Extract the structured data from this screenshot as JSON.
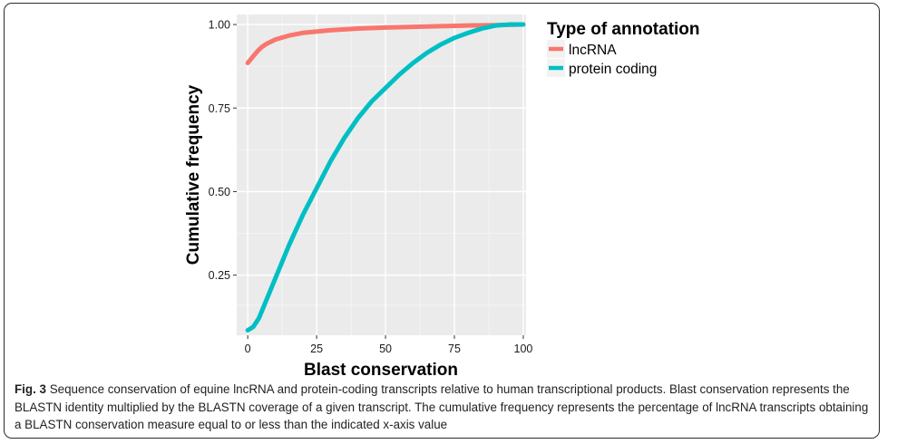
{
  "chart_data": {
    "type": "line",
    "title": "",
    "xlabel": "Blast conservation",
    "ylabel": "Cumulative frequency",
    "xlim": [
      -4,
      101
    ],
    "ylim": [
      0.07,
      1.03
    ],
    "x_ticks": [
      0,
      25,
      50,
      75,
      100
    ],
    "x_tick_labels": [
      "0",
      "25",
      "50",
      "75",
      "100"
    ],
    "y_ticks": [
      0.25,
      0.5,
      0.75,
      1.0
    ],
    "y_tick_labels": [
      "0.25",
      "0.50",
      "0.75",
      "1.00"
    ],
    "grid": true,
    "legend": {
      "title": "Type of annotation",
      "placement": "right",
      "entries": [
        "lncRNA",
        "protein coding"
      ]
    },
    "series": [
      {
        "name": "lncRNA",
        "color": "#F8766D",
        "x": [
          0,
          1,
          2,
          3,
          4,
          5,
          7,
          10,
          15,
          20,
          30,
          40,
          50,
          60,
          70,
          80,
          90,
          95,
          100
        ],
        "y": [
          0.885,
          0.895,
          0.905,
          0.915,
          0.924,
          0.932,
          0.943,
          0.955,
          0.967,
          0.975,
          0.983,
          0.988,
          0.991,
          0.993,
          0.995,
          0.997,
          0.998,
          0.999,
          1.0
        ]
      },
      {
        "name": "protein coding",
        "color": "#00BFC4",
        "x": [
          0,
          2,
          4,
          6,
          8,
          10,
          12,
          15,
          20,
          25,
          30,
          35,
          40,
          45,
          50,
          55,
          60,
          65,
          70,
          75,
          80,
          85,
          90,
          95,
          97,
          100
        ],
        "y": [
          0.085,
          0.095,
          0.12,
          0.16,
          0.2,
          0.24,
          0.28,
          0.34,
          0.43,
          0.51,
          0.59,
          0.66,
          0.72,
          0.77,
          0.81,
          0.85,
          0.885,
          0.915,
          0.94,
          0.96,
          0.975,
          0.988,
          0.997,
          1.0,
          1.0,
          1.0
        ]
      }
    ]
  },
  "caption": {
    "label": "Fig. 3",
    "text": "Sequence conservation of equine lncRNA and protein-coding transcripts relative to human transcriptional products. Blast conservation represents the BLASTN identity multiplied by the BLASTN coverage of a given transcript. The cumulative frequency represents the percentage of lncRNA transcripts obtaining a BLASTN conservation measure equal to or less than the indicated x-axis value"
  }
}
